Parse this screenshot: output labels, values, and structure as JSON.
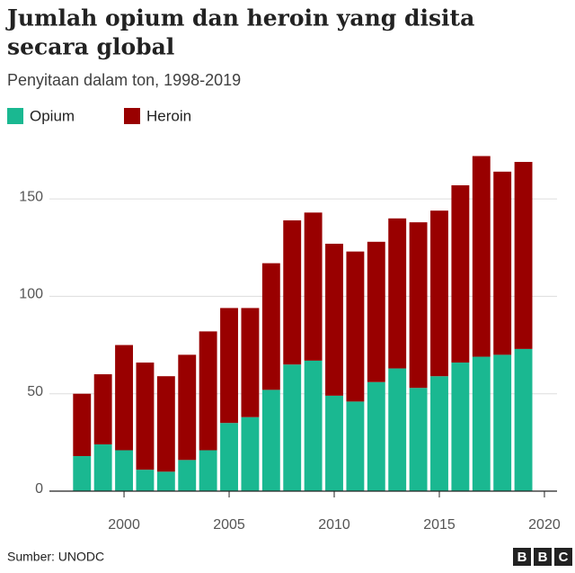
{
  "chart_data": {
    "type": "stacked_bar",
    "title": [
      "Jumlah opium dan heroin yang disita",
      "secara global"
    ],
    "subtitle": "Penyitaan dalam ton, 1998-2019",
    "source": "Sumber: UNODC",
    "logo": "BBC",
    "x": [
      1998,
      1999,
      2000,
      2001,
      2002,
      2003,
      2004,
      2005,
      2006,
      2007,
      2008,
      2009,
      2010,
      2011,
      2012,
      2013,
      2014,
      2015,
      2016,
      2017,
      2018,
      2019
    ],
    "series": [
      {
        "name": "Opium",
        "color": "#1ab891",
        "values": [
          18,
          24,
          21,
          11,
          10,
          16,
          21,
          35,
          38,
          52,
          65,
          67,
          49,
          46,
          56,
          63,
          53,
          59,
          66,
          69,
          70,
          73
        ]
      },
      {
        "name": "Heroin",
        "color": "#990000",
        "values": [
          32,
          36,
          54,
          55,
          49,
          54,
          61,
          59,
          56,
          65,
          74,
          76,
          78,
          77,
          72,
          77,
          85,
          85,
          91,
          103,
          94,
          96
        ]
      }
    ],
    "xlim": [
      1996.45,
      2020.6
    ],
    "xticks": [
      2000,
      2005,
      2010,
      2015,
      2020
    ],
    "ylim": [
      0,
      175
    ],
    "yticks": [
      0,
      50,
      100,
      150
    ],
    "grid": true
  }
}
